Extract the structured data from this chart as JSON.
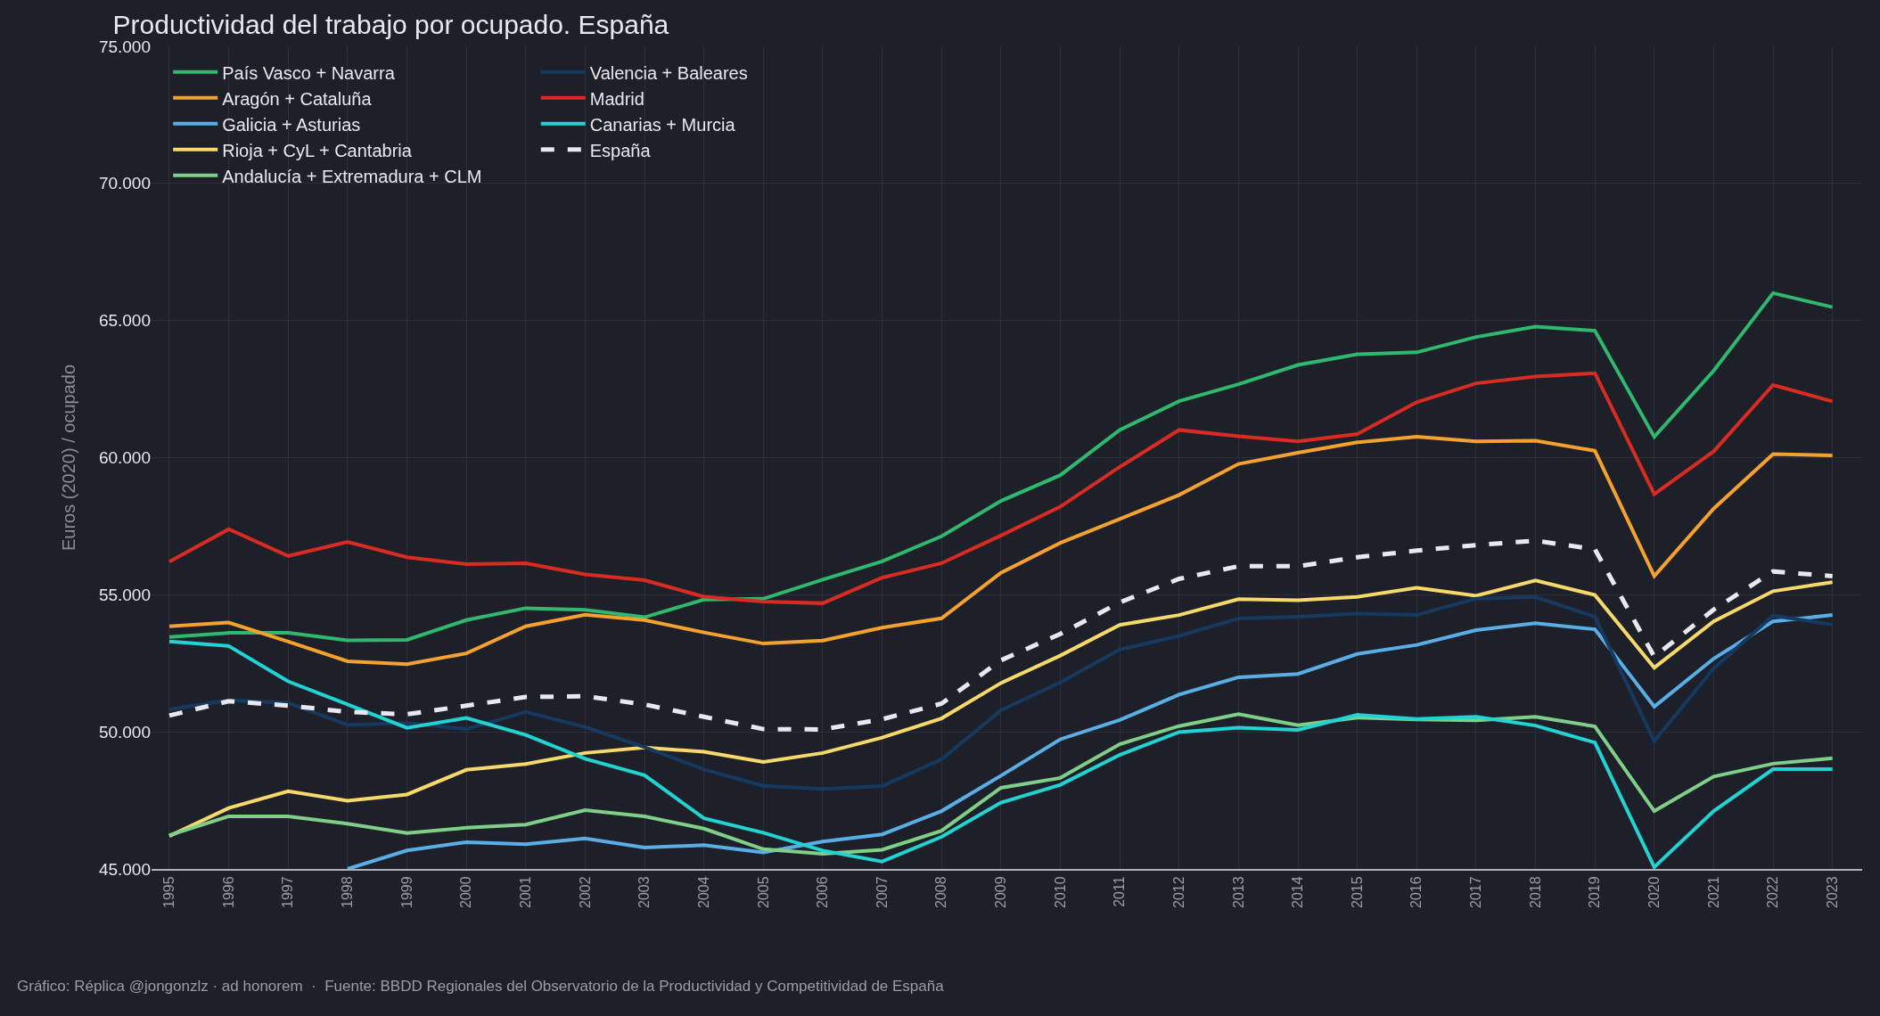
{
  "chart_data": {
    "type": "line",
    "title": "Productividad del trabajo por ocupado. España",
    "ylabel": "Euros (2020) / ocupado",
    "categories": [
      "1995",
      "1996",
      "1997",
      "1998",
      "1999",
      "2000",
      "2001",
      "2002",
      "2003",
      "2004",
      "2005",
      "2006",
      "2007",
      "2008",
      "2009",
      "2010",
      "2011",
      "2012",
      "2013",
      "2014",
      "2015",
      "2016",
      "2017",
      "2018",
      "2019",
      "2020",
      "2021",
      "2022",
      "2023"
    ],
    "series": [
      {
        "name": "País Vasco + Navarra",
        "color": "#2fb86e",
        "values": [
          53460,
          53610,
          53610,
          53340,
          53355,
          54075,
          54510,
          54450,
          54180,
          54825,
          54855,
          55550,
          56220,
          57130,
          58420,
          59360,
          61010,
          62060,
          62680,
          63380,
          63770,
          63840,
          64400,
          64780,
          64630,
          60760,
          63170,
          66000,
          65490
        ]
      },
      {
        "name": "Aragón + Cataluña",
        "color": "#f4a12e",
        "values": [
          53850,
          53985,
          53295,
          52575,
          52470,
          52860,
          53850,
          54270,
          54075,
          53625,
          53220,
          53330,
          53800,
          54140,
          55800,
          56890,
          57760,
          58640,
          59770,
          60180,
          60560,
          60760,
          60590,
          60620,
          60250,
          55680,
          58140,
          60130,
          60080
        ]
      },
      {
        "name": "Galicia + Asturias",
        "color": "#5aaee6",
        "values": [
          null,
          null,
          null,
          45000,
          45675,
          45975,
          45900,
          46110,
          45780,
          45870,
          45600,
          46000,
          46260,
          47110,
          48400,
          49730,
          50430,
          51360,
          51990,
          52110,
          52840,
          53170,
          53710,
          53960,
          53740,
          50920,
          52670,
          54030,
          54260
        ]
      },
      {
        "name": "Rioja + CyL + Cantabria",
        "color": "#f7d96a",
        "values": [
          46200,
          47220,
          47835,
          47490,
          47715,
          48615,
          48825,
          49230,
          49425,
          49275,
          48900,
          49230,
          49790,
          50490,
          51780,
          52780,
          53900,
          54260,
          54840,
          54800,
          54920,
          55250,
          54960,
          55520,
          54990,
          52340,
          54030,
          55130,
          55460
        ]
      },
      {
        "name": "Andalucía + Extremadura + CLM",
        "color": "#7fcf89",
        "values": [
          46230,
          46920,
          46920,
          46650,
          46305,
          46500,
          46620,
          47145,
          46920,
          46470,
          45720,
          45550,
          45700,
          46390,
          47960,
          48320,
          49550,
          50210,
          50650,
          50240,
          50520,
          50450,
          50420,
          50550,
          50200,
          47110,
          48370,
          48840,
          49040
        ]
      },
      {
        "name": "Valencia + Baleares",
        "color": "#163a5f",
        "values": [
          50820,
          51150,
          51060,
          50250,
          50325,
          50100,
          50730,
          50175,
          49440,
          48630,
          48030,
          47920,
          48020,
          49000,
          50790,
          51810,
          53000,
          53500,
          54130,
          54200,
          54310,
          54260,
          54860,
          54920,
          54200,
          49660,
          52310,
          54240,
          53910
        ]
      },
      {
        "name": "Madrid",
        "color": "#d92b22",
        "values": [
          56205,
          57390,
          56415,
          56925,
          56370,
          56115,
          56145,
          55740,
          55530,
          54930,
          54750,
          54690,
          55620,
          56150,
          57160,
          58210,
          59660,
          61010,
          60780,
          60590,
          60860,
          62020,
          62710,
          62960,
          63080,
          58670,
          60230,
          62650,
          62050
        ]
      },
      {
        "name": "Canarias + Murcia",
        "color": "#22d3d3",
        "values": [
          53295,
          53130,
          51840,
          51000,
          50145,
          50505,
          49890,
          49020,
          48420,
          46845,
          46320,
          45670,
          45270,
          46170,
          47420,
          48070,
          49160,
          49990,
          50150,
          50070,
          50620,
          50470,
          50550,
          50230,
          49610,
          45070,
          47110,
          48640,
          48640
        ]
      },
      {
        "name": "España",
        "color": "#e8e8ee",
        "line_style": "dashed",
        "values": [
          50595,
          51120,
          50955,
          50730,
          50640,
          50955,
          51270,
          51300,
          51000,
          50550,
          50100,
          50090,
          50460,
          51030,
          52610,
          53570,
          54720,
          55580,
          56040,
          56040,
          56370,
          56610,
          56810,
          56970,
          56660,
          52740,
          54460,
          55850,
          55680
        ]
      }
    ],
    "ylim": [
      45000,
      75000
    ],
    "yticks": [
      {
        "value": 45000,
        "label": "45.000"
      },
      {
        "value": 50000,
        "label": "50.000"
      },
      {
        "value": 55000,
        "label": "55.000"
      },
      {
        "value": 60000,
        "label": "60.000"
      },
      {
        "value": 65000,
        "label": "65.000"
      },
      {
        "value": 70000,
        "label": "70.000"
      },
      {
        "value": 75000,
        "label": "75.000"
      }
    ],
    "grid": true,
    "legend": "top left",
    "line_style": "solid",
    "marker": "none",
    "annotations": [
      "Gráfico: Réplica @jongonzlz · ad honorem  ·  Fuente: BBDD Regionales del Observatorio de la Productividad y Competitividad de España"
    ]
  }
}
